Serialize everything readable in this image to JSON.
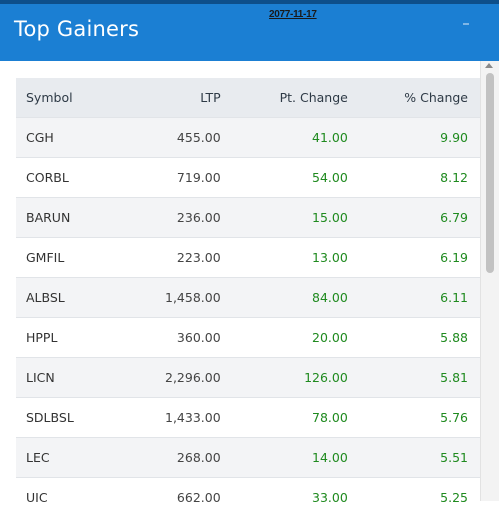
{
  "header": {
    "title": "Top Gainers",
    "date": "2077-11-17"
  },
  "table": {
    "columns": [
      "Symbol",
      "LTP",
      "Pt. Change",
      "% Change"
    ],
    "rows": [
      {
        "symbol": "CGH",
        "ltp": "455.00",
        "pt_change": "41.00",
        "pct_change": "9.90"
      },
      {
        "symbol": "CORBL",
        "ltp": "719.00",
        "pt_change": "54.00",
        "pct_change": "8.12"
      },
      {
        "symbol": "BARUN",
        "ltp": "236.00",
        "pt_change": "15.00",
        "pct_change": "6.79"
      },
      {
        "symbol": "GMFIL",
        "ltp": "223.00",
        "pt_change": "13.00",
        "pct_change": "6.19"
      },
      {
        "symbol": "ALBSL",
        "ltp": "1,458.00",
        "pt_change": "84.00",
        "pct_change": "6.11"
      },
      {
        "symbol": "HPPL",
        "ltp": "360.00",
        "pt_change": "20.00",
        "pct_change": "5.88"
      },
      {
        "symbol": "LICN",
        "ltp": "2,296.00",
        "pt_change": "126.00",
        "pct_change": "5.81"
      },
      {
        "symbol": "SDLBSL",
        "ltp": "1,433.00",
        "pt_change": "78.00",
        "pct_change": "5.76"
      },
      {
        "symbol": "LEC",
        "ltp": "268.00",
        "pt_change": "14.00",
        "pct_change": "5.51"
      },
      {
        "symbol": "UIC",
        "ltp": "662.00",
        "pt_change": "33.00",
        "pct_change": "5.25"
      }
    ]
  },
  "colors": {
    "header_bg": "#1b7fd3",
    "gain_text": "#1f8a1f",
    "table_head_bg": "#e8ebef"
  }
}
